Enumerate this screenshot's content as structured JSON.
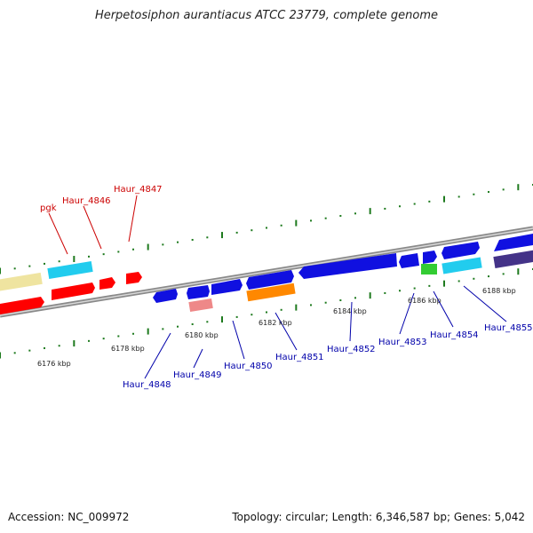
{
  "title": "Herpetosiphon aurantiacus ATCC 23779, complete genome",
  "accession": "Accession: NC_009972",
  "stats": "Topology: circular; Length: 6,346,587 bp; Genes: 5,042",
  "colors": {
    "backbone": "#8a8a8a",
    "tick": "#1e7a1e",
    "label_top": "#cc0000",
    "label_bottom": "#0000aa",
    "gene_red": "#ff0000",
    "gene_blue": "#1010e0",
    "gene_cyan": "#22ccee",
    "gene_yellow": "#efe4a0",
    "gene_pink": "#ee8888",
    "gene_orange": "#ff8800",
    "gene_green": "#33cc33",
    "gene_indigo": "#443388"
  },
  "scale_labels": {
    "k6176": "6176 kbp",
    "k6178": "6178 kbp",
    "k6180": "6180 kbp",
    "k6182": "6182 kbp",
    "k6184": "6184 kbp",
    "k6186": "6186 kbp",
    "k6188": "6188 kbp"
  },
  "gene_labels_top": {
    "pgk": "pgk",
    "haur4846": "Haur_4846",
    "haur4847": "Haur_4847"
  },
  "gene_labels_bottom": {
    "haur4848": "Haur_4848",
    "haur4849": "Haur_4849",
    "haur4850": "Haur_4850",
    "haur4851": "Haur_4851",
    "haur4852": "Haur_4852",
    "haur4853": "Haur_4853",
    "haur4854": "Haur_4854",
    "haur4855": "Haur_4855"
  }
}
